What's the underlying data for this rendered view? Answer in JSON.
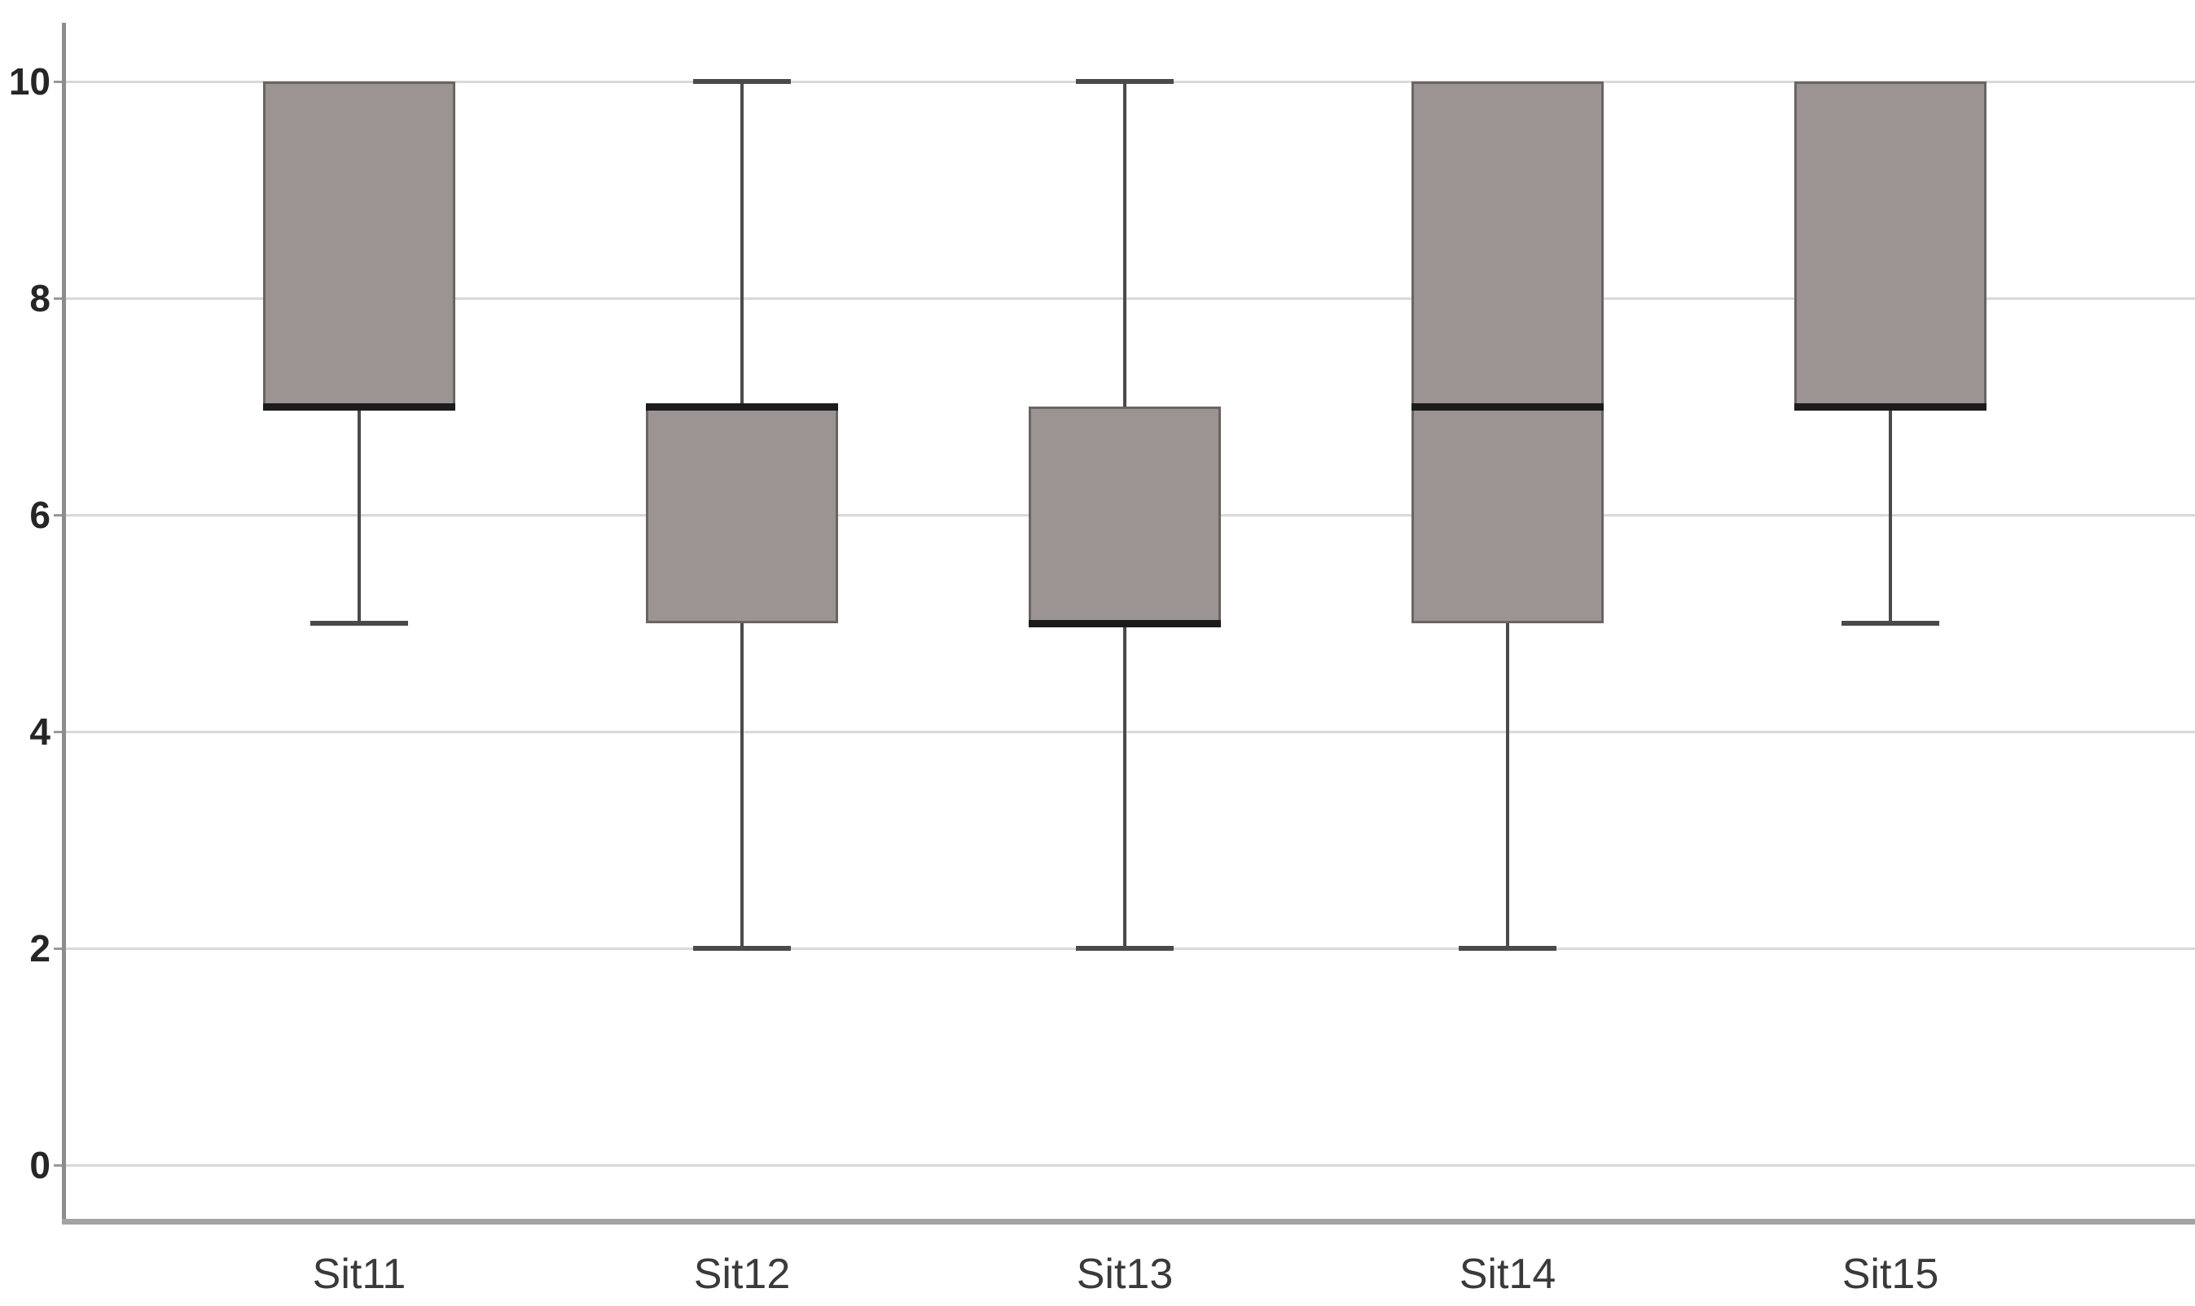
{
  "chart_data": {
    "type": "box",
    "title": "",
    "xlabel": "",
    "ylabel": "",
    "categories": [
      "Sit11",
      "Sit12",
      "Sit13",
      "Sit14",
      "Sit15"
    ],
    "boxes": [
      {
        "label": "Sit11",
        "min": 5,
        "q1": 7,
        "median": 7,
        "q3": 10,
        "max": 10
      },
      {
        "label": "Sit12",
        "min": 2,
        "q1": 5,
        "median": 7,
        "q3": 7,
        "max": 10
      },
      {
        "label": "Sit13",
        "min": 2,
        "q1": 5,
        "median": 5,
        "q3": 7,
        "max": 10
      },
      {
        "label": "Sit14",
        "min": 2,
        "q1": 5,
        "median": 7,
        "q3": 10,
        "max": 10
      },
      {
        "label": "Sit15",
        "min": 5,
        "q1": 7,
        "median": 7,
        "q3": 10,
        "max": 10
      }
    ],
    "ylim": [
      0,
      10
    ],
    "yticks": [
      0,
      2,
      4,
      6,
      8,
      10
    ],
    "grid": "horizontal",
    "legend": "none",
    "colors": {
      "box_fill": "#9c9493",
      "box_border": "#6a6463",
      "median": "#1c1c1c",
      "whisker": "#4a4a4a",
      "gridline": "#d9d9d9",
      "y_axis": "#8c8c8c",
      "x_axis": "#a3a3a3",
      "tick": "#999999",
      "y_label_color": "#262626",
      "x_label_color": "#3a3a3a"
    }
  }
}
